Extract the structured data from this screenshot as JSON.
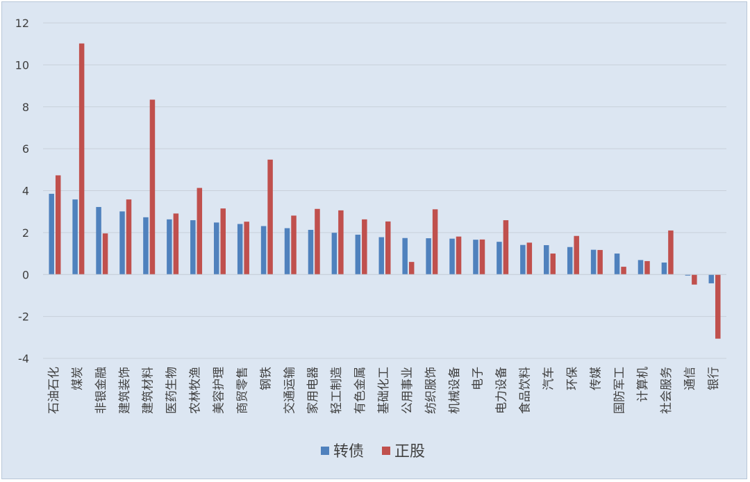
{
  "chart_data": {
    "type": "bar",
    "categories": [
      "石油石化",
      "煤炭",
      "非银金融",
      "建筑装饰",
      "建筑材料",
      "医药生物",
      "农林牧渔",
      "美容护理",
      "商贸零售",
      "钢铁",
      "交通运输",
      "家用电器",
      "轻工制造",
      "有色金属",
      "基础化工",
      "公用事业",
      "纺织服饰",
      "机械设备",
      "电子",
      "电力设备",
      "食品饮料",
      "汽车",
      "环保",
      "传媒",
      "国防军工",
      "计算机",
      "社会服务",
      "通信",
      "银行"
    ],
    "series": [
      {
        "name": "转债",
        "color": "#4f81bd",
        "values": [
          3.85,
          3.58,
          3.22,
          3.01,
          2.73,
          2.63,
          2.59,
          2.48,
          2.41,
          2.31,
          2.21,
          2.13,
          1.99,
          1.9,
          1.78,
          1.74,
          1.73,
          1.71,
          1.66,
          1.56,
          1.41,
          1.4,
          1.31,
          1.18,
          1.0,
          0.69,
          0.57,
          -0.05,
          -0.42
        ]
      },
      {
        "name": "正股",
        "color": "#c0504d",
        "values": [
          4.73,
          11.02,
          1.96,
          3.58,
          8.34,
          2.91,
          4.13,
          3.15,
          2.52,
          5.48,
          2.81,
          3.13,
          3.06,
          2.63,
          2.53,
          0.6,
          3.11,
          1.81,
          1.67,
          2.59,
          1.52,
          1.0,
          1.84,
          1.17,
          0.37,
          0.64,
          2.1,
          -0.48,
          -3.06
        ]
      }
    ],
    "y_ticks": [
      "12",
      "10",
      "8",
      "6",
      "4",
      "2",
      "0",
      "-2",
      "-4"
    ],
    "ylim": [
      -4,
      12
    ],
    "grid": true,
    "legend_position": "bottom-center"
  }
}
